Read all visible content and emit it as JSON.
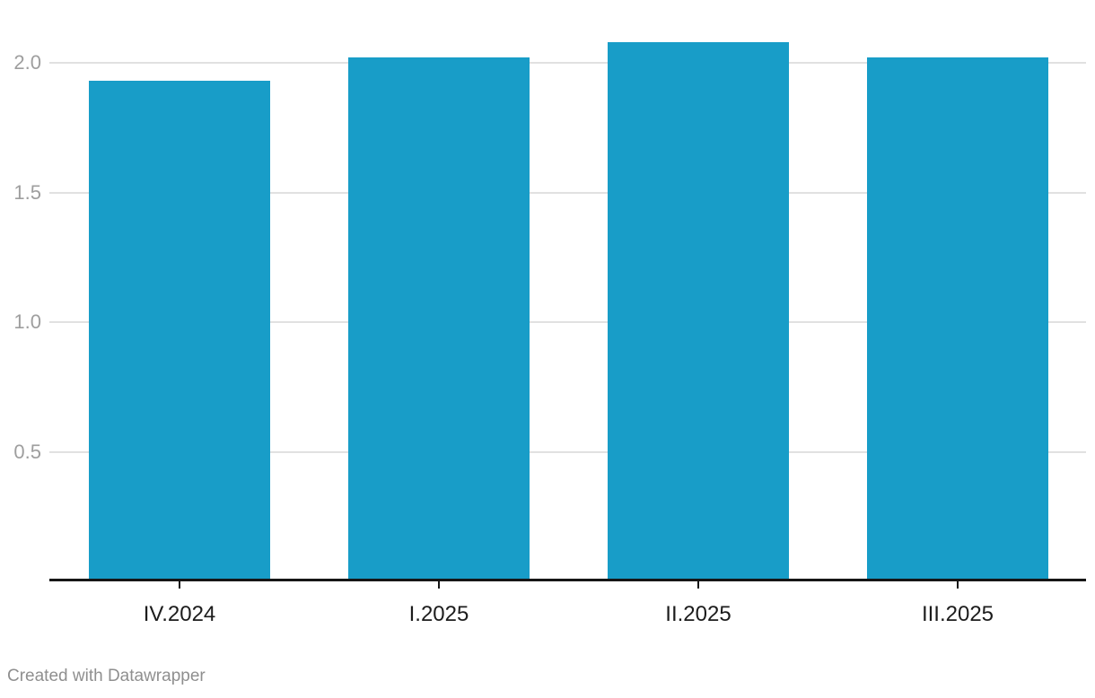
{
  "chart_data": {
    "type": "bar",
    "title": "",
    "xlabel": "",
    "ylabel": "",
    "categories": [
      "IV.2024",
      "I.2025",
      "II.2025",
      "III.2025"
    ],
    "values": [
      1.93,
      2.02,
      2.08,
      2.02
    ],
    "ylim": [
      0,
      2.2
    ],
    "yticks": [
      0.5,
      1.0,
      1.5,
      2.0
    ],
    "ytick_labels": [
      "0.5",
      "1.0",
      "1.5",
      "2.0"
    ],
    "grid": true,
    "legend": false,
    "legend_position": "none",
    "bar_color": "#189dc8"
  },
  "footer": {
    "attribution": "Created with Datawrapper"
  },
  "colors": {
    "bar": "#189dc8",
    "gridline": "#e1e1e1",
    "axis_line": "#161616",
    "x_tick_label": "#1c1c1c",
    "y_tick_label": "#9e9e9e",
    "attribution": "#8f8f8f",
    "background": "#ffffff"
  }
}
